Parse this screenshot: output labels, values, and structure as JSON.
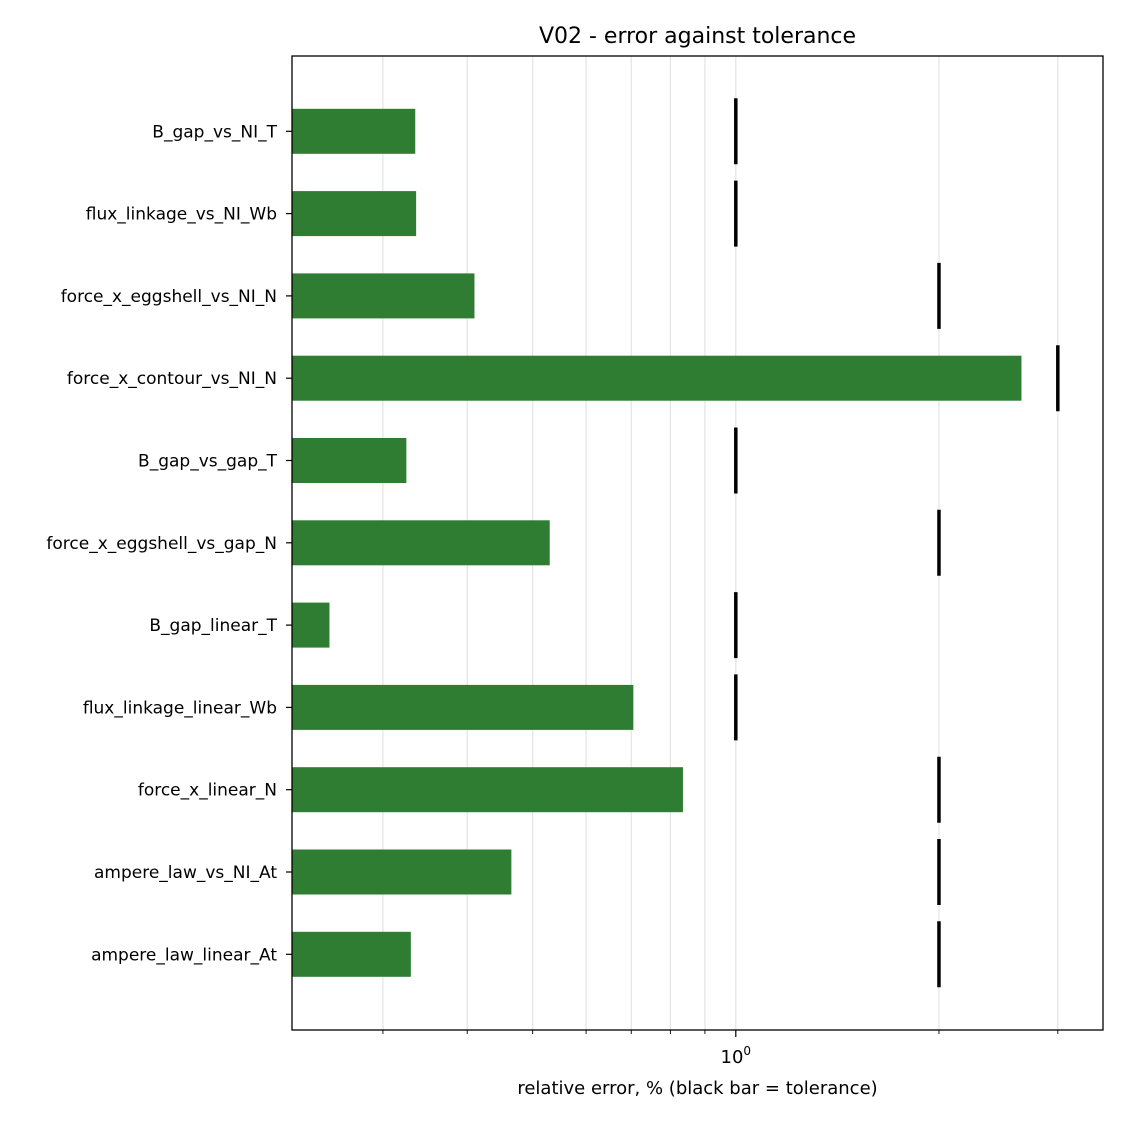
{
  "chart_data": {
    "type": "bar",
    "orientation": "horizontal",
    "title": "V02 - error against tolerance",
    "xlabel": "relative error, % (black bar = tolerance)",
    "ylabel": "",
    "xscale": "log",
    "xlim": [
      0.22,
      3.5
    ],
    "x_tick_labels": [
      {
        "value": 1,
        "base": "10",
        "exp": "0"
      }
    ],
    "grid": "x",
    "bar_color": "#2e7d32",
    "tolerance_color": "#000000",
    "categories": [
      "B_gap_vs_NI_T",
      "flux_linkage_vs_NI_Wb",
      "force_x_eggshell_vs_NI_N",
      "force_x_contour_vs_NI_N",
      "B_gap_vs_gap_T",
      "force_x_eggshell_vs_gap_N",
      "B_gap_linear_T",
      "flux_linkage_linear_Wb",
      "force_x_linear_N",
      "ampere_law_vs_NI_At",
      "ampere_law_linear_At"
    ],
    "series": [
      {
        "values": [
          0.335,
          0.336,
          0.41,
          2.65,
          0.325,
          0.53,
          0.25,
          0.705,
          0.835,
          0.465,
          0.33
        ]
      }
    ],
    "tolerance": [
      1,
      1,
      2,
      3,
      1,
      2,
      1,
      1,
      2,
      2,
      2
    ]
  }
}
